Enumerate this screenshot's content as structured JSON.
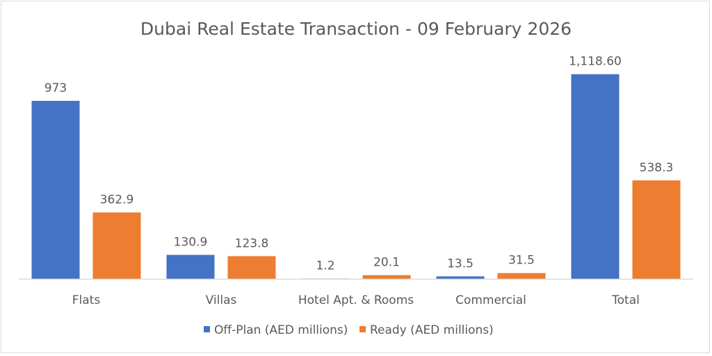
{
  "chart_data": {
    "type": "bar",
    "title": "Dubai Real Estate Transaction - 09 February 2026",
    "categories": [
      "Flats",
      "Villas",
      "Hotel Apt. & Rooms",
      "Commercial",
      "Total"
    ],
    "series": [
      {
        "name": "Off-Plan (AED millions)",
        "color": "#4472C4",
        "values": [
          973,
          130.9,
          1.2,
          13.5,
          1118.6
        ],
        "labels": [
          "973",
          "130.9",
          "1.2",
          "13.5",
          "1,118.60"
        ]
      },
      {
        "name": "Ready (AED millions)",
        "color": "#ED7D31",
        "values": [
          362.9,
          123.8,
          20.1,
          31.5,
          538.3
        ],
        "labels": [
          "362.9",
          "123.8",
          "20.1",
          "31.5",
          "538.3"
        ]
      }
    ],
    "xlabel": "",
    "ylabel": "",
    "ylim": [
      0,
      1300
    ],
    "grid": false,
    "legend": "bottom",
    "data_labels": true
  }
}
